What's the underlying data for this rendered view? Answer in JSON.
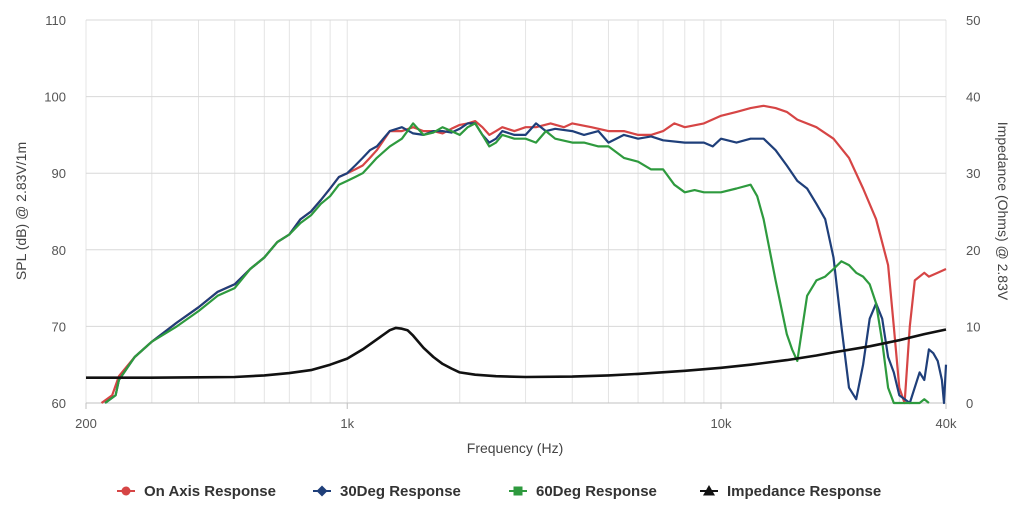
{
  "chart_data": {
    "type": "line",
    "xlabel": "Frequency (Hz)",
    "ylabel_left": "SPL (dB) @ 2.83V/1m",
    "ylabel_right": "Impedance (Ohms) @ 2.83V",
    "x_scale": "log",
    "xlim": [
      200,
      40000
    ],
    "x_ticks": [
      200,
      1000,
      10000,
      40000
    ],
    "x_tick_labels": [
      "200",
      "1k",
      "10k",
      "40k"
    ],
    "ylim_left": [
      60,
      110
    ],
    "y_ticks_left": [
      60,
      70,
      80,
      90,
      100,
      110
    ],
    "ylim_right": [
      0,
      50
    ],
    "y_ticks_right": [
      0,
      10,
      20,
      30,
      40,
      50
    ],
    "grid": true,
    "legend_position": "bottom-center",
    "series": [
      {
        "name": "On Axis Response",
        "color": "#d64545",
        "marker": "circle",
        "axis": "left",
        "points": [
          [
            220,
            60
          ],
          [
            235,
            61
          ],
          [
            245,
            63.5
          ],
          [
            270,
            66
          ],
          [
            300,
            68
          ],
          [
            350,
            70.5
          ],
          [
            400,
            72.5
          ],
          [
            450,
            74.5
          ],
          [
            500,
            75.5
          ],
          [
            550,
            77.5
          ],
          [
            600,
            79
          ],
          [
            650,
            81
          ],
          [
            700,
            82
          ],
          [
            750,
            84
          ],
          [
            800,
            85
          ],
          [
            850,
            86.5
          ],
          [
            900,
            88
          ],
          [
            950,
            89.5
          ],
          [
            1000,
            90
          ],
          [
            1050,
            90.5
          ],
          [
            1100,
            91
          ],
          [
            1150,
            92
          ],
          [
            1200,
            93
          ],
          [
            1300,
            95.5
          ],
          [
            1400,
            95.5
          ],
          [
            1500,
            96
          ],
          [
            1600,
            95.5
          ],
          [
            1700,
            95.5
          ],
          [
            1800,
            95.2
          ],
          [
            1900,
            95.8
          ],
          [
            2000,
            96.3
          ],
          [
            2100,
            96.5
          ],
          [
            2200,
            96.8
          ],
          [
            2300,
            96
          ],
          [
            2400,
            95
          ],
          [
            2500,
            95.5
          ],
          [
            2600,
            96
          ],
          [
            2800,
            95.5
          ],
          [
            3000,
            96
          ],
          [
            3200,
            96
          ],
          [
            3500,
            96.5
          ],
          [
            3800,
            96
          ],
          [
            4000,
            96.5
          ],
          [
            4500,
            96
          ],
          [
            5000,
            95.5
          ],
          [
            5500,
            95.5
          ],
          [
            6000,
            95
          ],
          [
            6500,
            95
          ],
          [
            7000,
            95.5
          ],
          [
            7500,
            96.5
          ],
          [
            8000,
            96
          ],
          [
            9000,
            96.5
          ],
          [
            10000,
            97.5
          ],
          [
            11000,
            98
          ],
          [
            12000,
            98.5
          ],
          [
            13000,
            98.8
          ],
          [
            14000,
            98.5
          ],
          [
            15000,
            98
          ],
          [
            16000,
            97
          ],
          [
            18000,
            96
          ],
          [
            20000,
            94.5
          ],
          [
            22000,
            92
          ],
          [
            24000,
            88
          ],
          [
            26000,
            84
          ],
          [
            28000,
            78
          ],
          [
            29000,
            70
          ],
          [
            30000,
            62
          ],
          [
            31000,
            60
          ],
          [
            32000,
            70
          ],
          [
            33000,
            76
          ],
          [
            35000,
            77
          ],
          [
            36000,
            76.5
          ],
          [
            38000,
            77
          ],
          [
            40000,
            77.5
          ]
        ]
      },
      {
        "name": "30Deg Response",
        "color": "#1f3f7a",
        "marker": "diamond",
        "axis": "left",
        "points": [
          [
            225,
            60
          ],
          [
            240,
            61
          ],
          [
            245,
            63
          ],
          [
            270,
            66
          ],
          [
            300,
            68
          ],
          [
            350,
            70.5
          ],
          [
            400,
            72.5
          ],
          [
            450,
            74.5
          ],
          [
            500,
            75.5
          ],
          [
            550,
            77.5
          ],
          [
            600,
            79
          ],
          [
            650,
            81
          ],
          [
            700,
            82
          ],
          [
            750,
            84
          ],
          [
            800,
            85
          ],
          [
            850,
            86.5
          ],
          [
            900,
            88
          ],
          [
            950,
            89.5
          ],
          [
            1000,
            90
          ],
          [
            1050,
            91
          ],
          [
            1100,
            92
          ],
          [
            1150,
            93
          ],
          [
            1200,
            93.5
          ],
          [
            1300,
            95.5
          ],
          [
            1400,
            96
          ],
          [
            1500,
            95.2
          ],
          [
            1600,
            95
          ],
          [
            1700,
            95.5
          ],
          [
            1800,
            95.5
          ],
          [
            1900,
            95.3
          ],
          [
            2000,
            95.8
          ],
          [
            2100,
            96.5
          ],
          [
            2200,
            96.5
          ],
          [
            2300,
            95
          ],
          [
            2400,
            94
          ],
          [
            2500,
            94.5
          ],
          [
            2600,
            95.5
          ],
          [
            2800,
            95
          ],
          [
            3000,
            95
          ],
          [
            3200,
            96.5
          ],
          [
            3400,
            95.5
          ],
          [
            3600,
            95.8
          ],
          [
            4000,
            95.5
          ],
          [
            4300,
            95
          ],
          [
            4700,
            95.5
          ],
          [
            5000,
            94
          ],
          [
            5500,
            95
          ],
          [
            6000,
            94.5
          ],
          [
            6500,
            94.8
          ],
          [
            7000,
            94.3
          ],
          [
            8000,
            94
          ],
          [
            9000,
            94
          ],
          [
            9500,
            93.5
          ],
          [
            10000,
            94.5
          ],
          [
            11000,
            94
          ],
          [
            12000,
            94.5
          ],
          [
            13000,
            94.5
          ],
          [
            14000,
            93
          ],
          [
            15000,
            91
          ],
          [
            16000,
            89
          ],
          [
            17000,
            88
          ],
          [
            18000,
            86
          ],
          [
            19000,
            84
          ],
          [
            20000,
            79
          ],
          [
            21000,
            70
          ],
          [
            22000,
            62
          ],
          [
            23000,
            60.5
          ],
          [
            24000,
            65
          ],
          [
            25000,
            71
          ],
          [
            26000,
            73
          ],
          [
            27000,
            71
          ],
          [
            28000,
            66
          ],
          [
            29000,
            64
          ],
          [
            30000,
            61
          ],
          [
            32000,
            60
          ],
          [
            34000,
            64
          ],
          [
            35000,
            63
          ],
          [
            36000,
            67
          ],
          [
            37000,
            66.5
          ],
          [
            38000,
            65.5
          ],
          [
            39000,
            63
          ],
          [
            39500,
            60
          ],
          [
            40000,
            65
          ]
        ]
      },
      {
        "name": "60Deg Response",
        "color": "#2e9a3e",
        "marker": "square",
        "axis": "left",
        "points": [
          [
            225,
            60
          ],
          [
            240,
            61
          ],
          [
            245,
            63
          ],
          [
            270,
            66
          ],
          [
            300,
            68
          ],
          [
            350,
            70
          ],
          [
            400,
            72
          ],
          [
            450,
            74
          ],
          [
            500,
            75
          ],
          [
            550,
            77.5
          ],
          [
            600,
            79
          ],
          [
            650,
            81
          ],
          [
            700,
            82
          ],
          [
            750,
            83.5
          ],
          [
            800,
            84.5
          ],
          [
            850,
            86
          ],
          [
            900,
            87
          ],
          [
            950,
            88.5
          ],
          [
            1000,
            89
          ],
          [
            1050,
            89.5
          ],
          [
            1100,
            90
          ],
          [
            1150,
            91
          ],
          [
            1200,
            92
          ],
          [
            1300,
            93.5
          ],
          [
            1400,
            94.5
          ],
          [
            1500,
            96.5
          ],
          [
            1600,
            95
          ],
          [
            1700,
            95.3
          ],
          [
            1800,
            96
          ],
          [
            1900,
            95.5
          ],
          [
            2000,
            95
          ],
          [
            2100,
            96
          ],
          [
            2200,
            96.5
          ],
          [
            2300,
            95
          ],
          [
            2400,
            93.5
          ],
          [
            2500,
            94
          ],
          [
            2600,
            95
          ],
          [
            2800,
            94.5
          ],
          [
            3000,
            94.5
          ],
          [
            3200,
            94
          ],
          [
            3400,
            95.5
          ],
          [
            3600,
            94.5
          ],
          [
            4000,
            94
          ],
          [
            4300,
            94
          ],
          [
            4700,
            93.5
          ],
          [
            5000,
            93.5
          ],
          [
            5500,
            92
          ],
          [
            6000,
            91.5
          ],
          [
            6500,
            90.5
          ],
          [
            7000,
            90.5
          ],
          [
            7500,
            88.5
          ],
          [
            8000,
            87.5
          ],
          [
            8500,
            87.8
          ],
          [
            9000,
            87.5
          ],
          [
            10000,
            87.5
          ],
          [
            11000,
            88
          ],
          [
            12000,
            88.5
          ],
          [
            12500,
            87
          ],
          [
            13000,
            84
          ],
          [
            14000,
            76
          ],
          [
            15000,
            69
          ],
          [
            15500,
            67
          ],
          [
            16000,
            65.5
          ],
          [
            17000,
            74
          ],
          [
            18000,
            76
          ],
          [
            19000,
            76.5
          ],
          [
            20000,
            77.5
          ],
          [
            21000,
            78.5
          ],
          [
            22000,
            78
          ],
          [
            23000,
            77
          ],
          [
            24000,
            76.5
          ],
          [
            25000,
            75.5
          ],
          [
            26000,
            73
          ],
          [
            27000,
            68
          ],
          [
            28000,
            62
          ],
          [
            29000,
            60
          ],
          [
            34000,
            60
          ],
          [
            35000,
            60.5
          ],
          [
            36000,
            60
          ]
        ]
      },
      {
        "name": "Impedance Response",
        "color": "#111111",
        "marker": "triangle",
        "axis": "right",
        "points": [
          [
            200,
            3.3
          ],
          [
            300,
            3.3
          ],
          [
            400,
            3.35
          ],
          [
            500,
            3.4
          ],
          [
            600,
            3.6
          ],
          [
            700,
            3.9
          ],
          [
            800,
            4.3
          ],
          [
            900,
            5
          ],
          [
            1000,
            5.8
          ],
          [
            1100,
            7
          ],
          [
            1200,
            8.3
          ],
          [
            1300,
            9.5
          ],
          [
            1350,
            9.8
          ],
          [
            1400,
            9.7
          ],
          [
            1450,
            9.5
          ],
          [
            1500,
            8.8
          ],
          [
            1600,
            7.2
          ],
          [
            1700,
            6
          ],
          [
            1800,
            5.1
          ],
          [
            1900,
            4.5
          ],
          [
            2000,
            4
          ],
          [
            2200,
            3.7
          ],
          [
            2500,
            3.5
          ],
          [
            3000,
            3.4
          ],
          [
            4000,
            3.45
          ],
          [
            5000,
            3.6
          ],
          [
            6000,
            3.8
          ],
          [
            8000,
            4.2
          ],
          [
            10000,
            4.6
          ],
          [
            12000,
            5
          ],
          [
            15000,
            5.6
          ],
          [
            18000,
            6.2
          ],
          [
            20000,
            6.6
          ],
          [
            25000,
            7.4
          ],
          [
            30000,
            8.2
          ],
          [
            35000,
            9
          ],
          [
            40000,
            9.6
          ]
        ]
      }
    ]
  }
}
